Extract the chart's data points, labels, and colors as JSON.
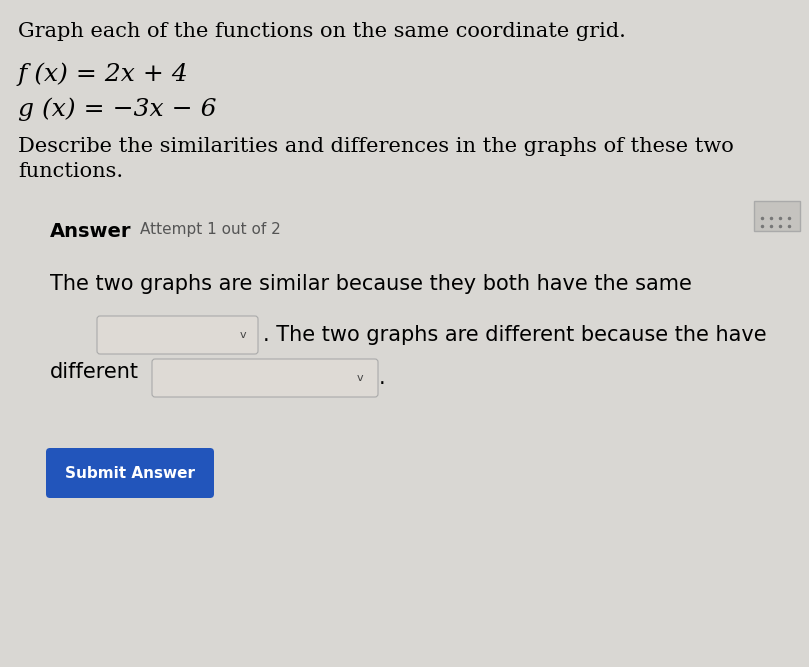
{
  "title": "Graph each of the functions on the same coordinate grid.",
  "func1": "f (x) = 2x + 4",
  "func2": "g (x) = −3x − 6",
  "describe_text": "Describe the similarities and differences in the graphs of these two\nfunctions.",
  "answer_label": "Answer",
  "attempt_text": "Attempt 1 out of 2",
  "similar_text": "The two graphs are similar because they both have the same",
  "different_text": ". The two graphs are different because the have",
  "different_label": "different",
  "submit_text": "Submit Answer",
  "bg_color": "#d9d7d3",
  "dropdown_color": "#e8e6e2",
  "submit_btn_color": "#2255bb",
  "submit_text_color": "#ffffff",
  "title_fontsize": 15,
  "func_fontsize": 18,
  "body_fontsize": 15,
  "answer_fontsize": 14,
  "small_fontsize": 11
}
